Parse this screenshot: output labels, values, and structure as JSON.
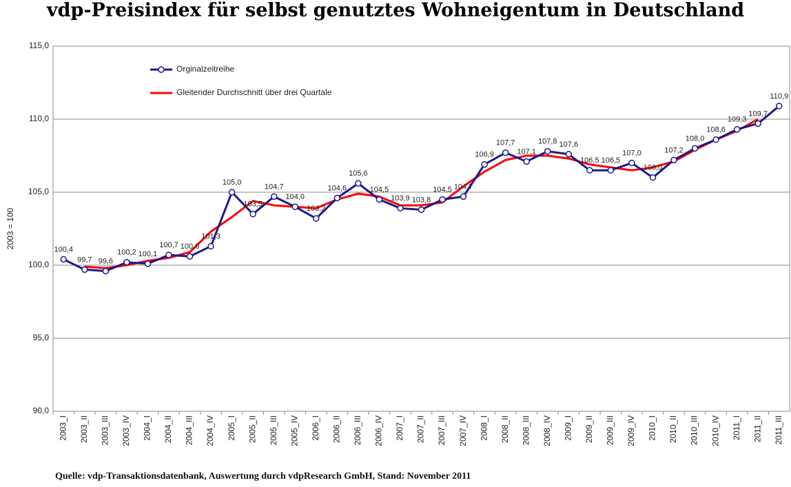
{
  "chart_data": {
    "type": "line",
    "title": "vdp-Preisindex für selbst genutztes Wohneigentum in Deutschland",
    "ylabel": "2003 = 100",
    "source": "Quelle: vdp-Transaktionsdatenbank, Auswertung durch vdpResearch GmbH, Stand: November 2011",
    "categories": [
      "2003_I",
      "2003_II",
      "2003_III",
      "2003_IV",
      "2004_I",
      "2004_II",
      "2004_III",
      "2004_IV",
      "2005_I",
      "2005_II",
      "2005_III",
      "2005_IV",
      "2006_I",
      "2006_II",
      "2006_III",
      "2006_IV",
      "2007_I",
      "2007_II",
      "2007_III",
      "2007_IV",
      "2008_I",
      "2008_II",
      "2008_III",
      "2008_IV",
      "2009_I",
      "2009_II",
      "2009_III",
      "2009_IV",
      "2010_I",
      "2010_II",
      "2010_III",
      "2010_IV",
      "2011_I",
      "2011_II",
      "2011_III"
    ],
    "series": [
      {
        "name": "Orginalzeitreihe",
        "color": "#1a1a8c",
        "markers": true,
        "values": [
          100.4,
          99.7,
          99.6,
          100.2,
          100.1,
          100.7,
          100.6,
          101.3,
          105.0,
          103.5,
          104.7,
          104.0,
          103.2,
          104.6,
          105.6,
          104.5,
          103.9,
          103.8,
          104.5,
          104.7,
          106.9,
          107.7,
          107.1,
          107.8,
          107.6,
          106.5,
          106.5,
          107.0,
          106.0,
          107.2,
          108.0,
          108.6,
          109.3,
          109.7,
          110.9
        ],
        "value_labels": [
          "100,4",
          "99,7",
          "99,6",
          "100,2",
          "100,1",
          "100,7",
          "100,6",
          "101,3",
          "105,0",
          "103,5",
          "104,7",
          "104,0",
          "103,2",
          "104,6",
          "105,6",
          "104,5",
          "103,9",
          "103,8",
          "104,5",
          "104,7",
          "106,9",
          "107,7",
          "107,1",
          "107,8",
          "107,6",
          "106,5",
          "106,5",
          "107,0",
          "106,0",
          "107,2",
          "108,0",
          "108,6",
          "109,3",
          "109,7",
          "110,9"
        ]
      },
      {
        "name": "Gleitender Durchschnitt über drei Quartale",
        "color": "#ff0000",
        "markers": false,
        "values": [
          null,
          99.9,
          99.8,
          100.0,
          100.3,
          100.5,
          100.9,
          102.3,
          103.3,
          104.4,
          104.1,
          104.0,
          103.9,
          104.5,
          104.9,
          104.7,
          104.1,
          104.1,
          104.3,
          105.4,
          106.4,
          107.2,
          107.5,
          107.5,
          107.3,
          106.9,
          106.7,
          106.5,
          106.7,
          107.1,
          107.9,
          108.6,
          109.2,
          110.0,
          null
        ]
      }
    ],
    "ylim": [
      90,
      115
    ],
    "yticks": [
      {
        "value": 90,
        "label": "90,0"
      },
      {
        "value": 95,
        "label": "95,0"
      },
      {
        "value": 100,
        "label": "100,0"
      },
      {
        "value": 105,
        "label": "105,0"
      },
      {
        "value": 110,
        "label": "110,0"
      },
      {
        "value": 115,
        "label": "115,0"
      }
    ],
    "grid": true
  }
}
